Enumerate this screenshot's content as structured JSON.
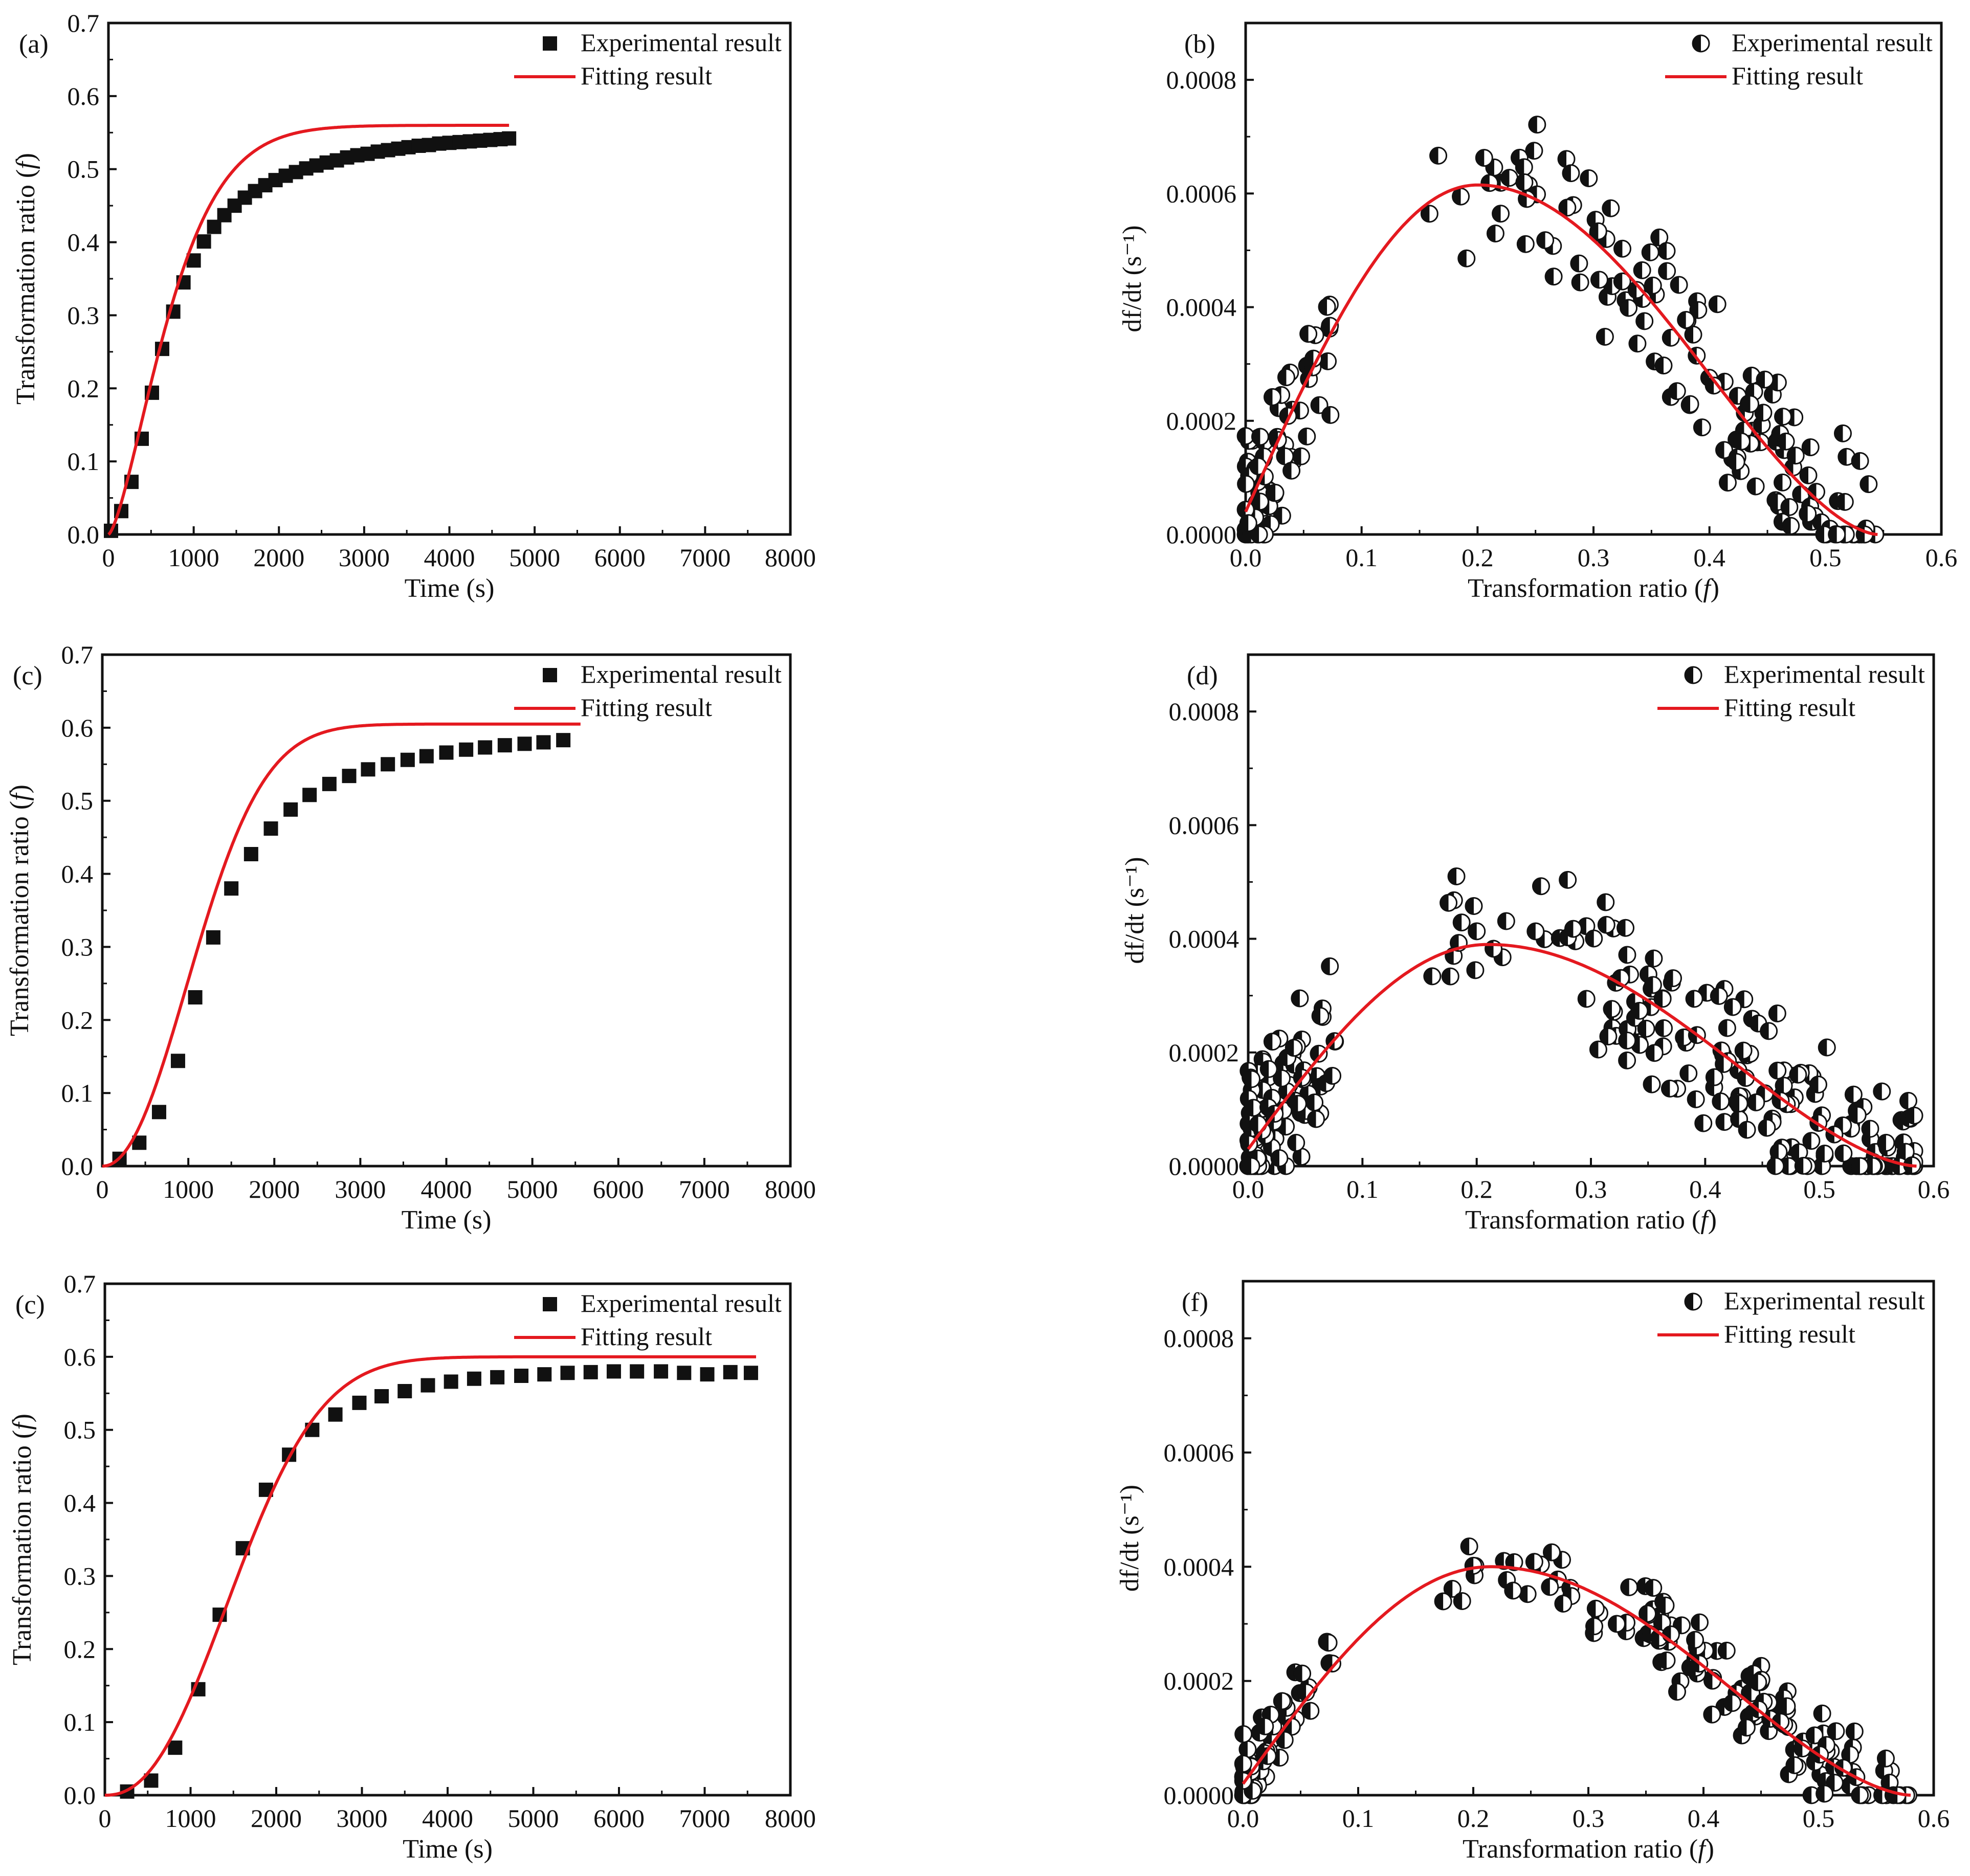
{
  "colors": {
    "fit": "#e4191f",
    "marker": "#111111",
    "axis": "#111111",
    "background": "#ffffff"
  },
  "chart_data": [
    {
      "panel": "(a)",
      "type": "scatter+line",
      "xlabel": "Time (s)",
      "ylabel_text": "Transformation ratio (",
      "ylabel_italic": "f",
      "ylabel_end": ")",
      "xlim": [
        0,
        8000
      ],
      "ylim": [
        0,
        0.7
      ],
      "xticks": [
        "0",
        "1000",
        "2000",
        "3000",
        "4000",
        "5000",
        "6000",
        "7000",
        "8000"
      ],
      "yticks": [
        "0.0",
        "0.1",
        "0.2",
        "0.3",
        "0.4",
        "0.5",
        "0.6",
        "0.7"
      ],
      "legend": {
        "position": "top-right",
        "entries": [
          "Experimental result",
          "Fitting result"
        ]
      },
      "marker": "square",
      "experimental": {
        "x": [
          30,
          150,
          270,
          390,
          510,
          630,
          760,
          880,
          1000,
          1120,
          1240,
          1360,
          1480,
          1600,
          1720,
          1840,
          1960,
          2080,
          2200,
          2320,
          2440,
          2560,
          2680,
          2800,
          2920,
          3040,
          3160,
          3280,
          3400,
          3520,
          3640,
          3760,
          3880,
          4000,
          4120,
          4240,
          4360,
          4480,
          4600,
          4700
        ],
        "y": [
          0.005,
          0.032,
          0.072,
          0.131,
          0.194,
          0.254,
          0.305,
          0.345,
          0.375,
          0.401,
          0.421,
          0.437,
          0.45,
          0.461,
          0.47,
          0.478,
          0.485,
          0.491,
          0.496,
          0.501,
          0.505,
          0.509,
          0.512,
          0.516,
          0.519,
          0.521,
          0.524,
          0.526,
          0.528,
          0.53,
          0.532,
          0.533,
          0.535,
          0.536,
          0.537,
          0.538,
          0.539,
          0.54,
          0.541,
          0.542
        ]
      },
      "fit": {
        "x_range": [
          0,
          4700
        ],
        "x50": 660,
        "n": 1.45,
        "fmax": 0.56
      }
    },
    {
      "panel": "(b)",
      "type": "scatter+line",
      "xlabel_text": "Transformation ratio (",
      "xlabel_italic": "f",
      "xlabel_end": ")",
      "ylabel": "df/dt (s⁻¹)",
      "xlim": [
        0,
        0.6
      ],
      "ylim": [
        0,
        0.0009
      ],
      "xticks": [
        "0.0",
        "0.1",
        "0.2",
        "0.3",
        "0.4",
        "0.5",
        "0.6"
      ],
      "yticks": [
        "0.0000",
        "0.0002",
        "0.0004",
        "0.0006",
        "0.0008"
      ],
      "legend": {
        "position": "top-right",
        "entries": [
          "Experimental result",
          "Fitting result"
        ]
      },
      "marker": "half-filled circle",
      "fit": {
        "peak_x": 0.2,
        "peak_y": 0.000615,
        "f_end": 0.545,
        "y0": 4e-05
      },
      "scatter": {
        "f_end": 0.545,
        "peak_x": 0.2,
        "peak_y": 0.000615,
        "noise_rel": 0.17,
        "n": 230,
        "seed": 11
      }
    },
    {
      "panel": "(c)",
      "type": "scatter+line",
      "xlabel": "Time (s)",
      "ylabel_text": "Transformation ratio (",
      "ylabel_italic": "f",
      "ylabel_end": ")",
      "xlim": [
        0,
        8000
      ],
      "ylim": [
        0,
        0.7
      ],
      "xticks": [
        "0",
        "1000",
        "2000",
        "3000",
        "4000",
        "5000",
        "6000",
        "7000",
        "8000"
      ],
      "yticks": [
        "0.0",
        "0.1",
        "0.2",
        "0.3",
        "0.4",
        "0.5",
        "0.6",
        "0.7"
      ],
      "legend": {
        "position": "top-right",
        "entries": [
          "Experimental result",
          "Fitting result"
        ]
      },
      "marker": "square",
      "experimental": {
        "x": [
          200,
          430,
          660,
          880,
          1080,
          1290,
          1500,
          1730,
          1960,
          2190,
          2410,
          2640,
          2870,
          3090,
          3320,
          3550,
          3770,
          4000,
          4230,
          4450,
          4680,
          4910,
          5130,
          5360
        ],
        "y": [
          0.01,
          0.032,
          0.074,
          0.144,
          0.231,
          0.313,
          0.38,
          0.427,
          0.462,
          0.488,
          0.508,
          0.523,
          0.534,
          0.543,
          0.55,
          0.556,
          0.561,
          0.566,
          0.57,
          0.573,
          0.576,
          0.578,
          0.58,
          0.583
        ]
      },
      "fit": {
        "x_range": [
          0,
          5560
        ],
        "x50": 1120,
        "n": 2.1,
        "fmax": 0.605
      }
    },
    {
      "panel": "(d)",
      "type": "scatter+line",
      "xlabel_text": "Transformation ratio (",
      "xlabel_italic": "f",
      "xlabel_end": ")",
      "ylabel": "df/dt (s⁻¹)",
      "xlim": [
        0,
        0.6
      ],
      "ylim": [
        0,
        0.0009
      ],
      "xticks": [
        "0.0",
        "0.1",
        "0.2",
        "0.3",
        "0.4",
        "0.5",
        "0.6"
      ],
      "yticks": [
        "0.0000",
        "0.0002",
        "0.0004",
        "0.0006",
        "0.0008"
      ],
      "legend": {
        "position": "top-right",
        "entries": [
          "Experimental result",
          "Fitting result"
        ]
      },
      "marker": "half-filled circle",
      "fit": {
        "peak_x": 0.21,
        "peak_y": 0.00039,
        "f_end": 0.585,
        "y0": 3e-05
      },
      "scatter": {
        "f_end": 0.585,
        "peak_x": 0.21,
        "peak_y": 0.00039,
        "noise_rel": 0.25,
        "n": 300,
        "seed": 23
      }
    },
    {
      "panel": "(c)",
      "type": "scatter+line",
      "xlabel": "Time (s)",
      "ylabel_text": "Transformation ratio (",
      "ylabel_italic": "f",
      "ylabel_end": ")",
      "xlim": [
        0,
        8000
      ],
      "ylim": [
        0,
        0.7
      ],
      "xticks": [
        "0",
        "1000",
        "2000",
        "3000",
        "4000",
        "5000",
        "6000",
        "7000",
        "8000"
      ],
      "yticks": [
        "0.0",
        "0.1",
        "0.2",
        "0.3",
        "0.4",
        "0.5",
        "0.6",
        "0.7"
      ],
      "legend": {
        "position": "top-right",
        "entries": [
          "Experimental result",
          "Fitting result"
        ]
      },
      "marker": "square",
      "experimental": {
        "x": [
          260,
          540,
          820,
          1090,
          1340,
          1610,
          1880,
          2150,
          2420,
          2690,
          2970,
          3230,
          3500,
          3770,
          4040,
          4310,
          4580,
          4860,
          5130,
          5400,
          5670,
          5940,
          6210,
          6490,
          6760,
          7030,
          7300,
          7540
        ],
        "y": [
          0.005,
          0.02,
          0.065,
          0.145,
          0.247,
          0.338,
          0.418,
          0.466,
          0.5,
          0.521,
          0.537,
          0.546,
          0.553,
          0.561,
          0.566,
          0.57,
          0.572,
          0.574,
          0.576,
          0.578,
          0.579,
          0.58,
          0.58,
          0.58,
          0.578,
          0.576,
          0.579,
          0.578
        ]
      },
      "fit": {
        "x_range": [
          0,
          7600
        ],
        "x50": 1550,
        "n": 2.3,
        "fmax": 0.6
      }
    },
    {
      "panel": "(f)",
      "type": "scatter+line",
      "xlabel_text": "Transformation ratio (",
      "xlabel_italic": "f",
      "xlabel_end": ")",
      "ylabel": "df/dt (s⁻¹)",
      "xlim": [
        0,
        0.6
      ],
      "ylim": [
        0,
        0.0009
      ],
      "xticks": [
        "0.0",
        "0.1",
        "0.2",
        "0.3",
        "0.4",
        "0.5",
        "0.6"
      ],
      "yticks": [
        "0.0000",
        "0.0002",
        "0.0004",
        "0.0006",
        "0.0008"
      ],
      "legend": {
        "position": "top-right",
        "entries": [
          "Experimental result",
          "Fitting result"
        ]
      },
      "marker": "half-filled circle",
      "fit": {
        "peak_x": 0.215,
        "peak_y": 0.0004,
        "f_end": 0.58,
        "y0": 2e-05
      },
      "scatter": {
        "f_end": 0.58,
        "peak_x": 0.215,
        "peak_y": 0.0004,
        "noise_rel": 0.15,
        "n": 200,
        "seed": 37
      }
    }
  ]
}
